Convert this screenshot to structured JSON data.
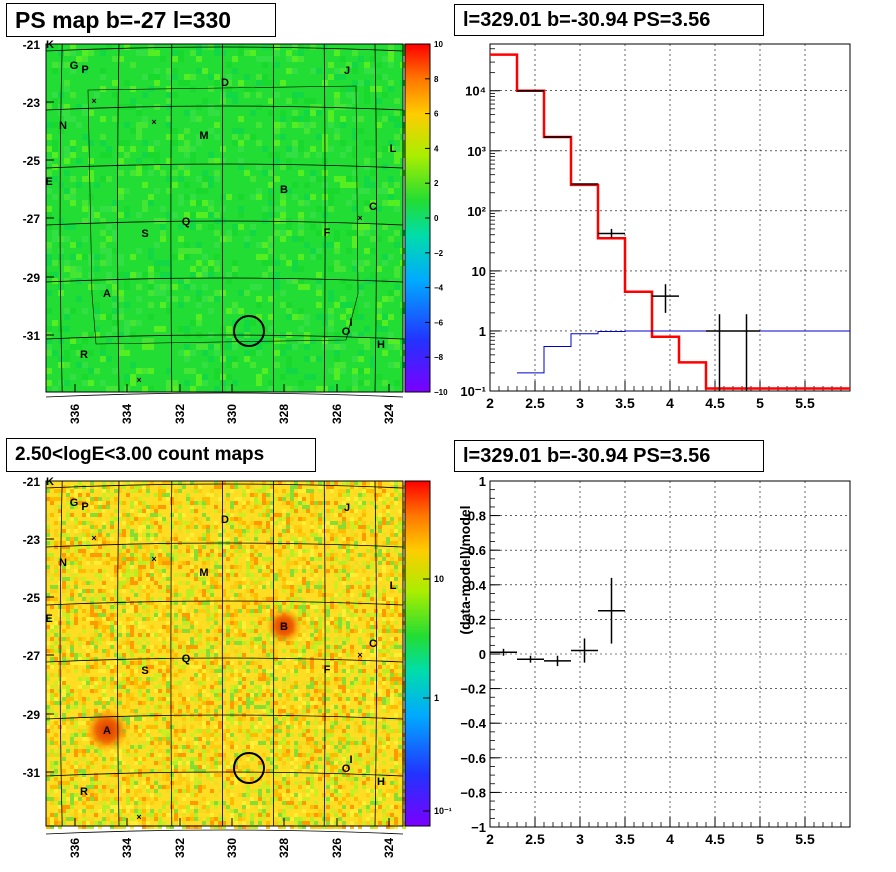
{
  "panels": {
    "ps_map": {
      "title": "PS map b=-27 l=330",
      "colorbar_ticks": [
        "10",
        "8",
        "6",
        "4",
        "2",
        "0",
        "−2",
        "−4",
        "−6",
        "−8",
        "−10"
      ]
    },
    "spectrum": {
      "title": "l=329.01 b=-30.94 PS=3.56"
    },
    "count_map": {
      "title": "2.50<logE<3.00 count maps",
      "colorbar_ticks": [
        "10",
        "1",
        "10⁻¹"
      ]
    },
    "residual": {
      "title": "l=329.01 b=-30.94 PS=3.56",
      "ylabel": "(data-model)/model"
    }
  },
  "sky_map": {
    "y_ticks": [
      "-21",
      "-23",
      "-25",
      "-27",
      "-29",
      "-31"
    ],
    "x_ticks": [
      "336",
      "334",
      "332",
      "330",
      "328",
      "326",
      "324"
    ],
    "sources": [
      "K",
      "G",
      "P",
      "J",
      "D",
      "N",
      "M",
      "L",
      "E",
      "B",
      "C",
      "Q",
      "S",
      "F",
      "A",
      "I",
      "O",
      "H",
      "R"
    ]
  },
  "chart_data": [
    {
      "type": "heatmap",
      "title": "PS map b=-27 l=330",
      "xlim": [
        337,
        323
      ],
      "ylim": [
        -33,
        -21
      ],
      "x_ticks": [
        336,
        334,
        332,
        330,
        328,
        326,
        324
      ],
      "y_ticks": [
        -21,
        -23,
        -25,
        -27,
        -29,
        -31
      ],
      "colorbar_range": [
        -10,
        10
      ],
      "colors": {
        "background": "#22dd33"
      }
    },
    {
      "type": "line",
      "title": "l=329.01 b=-30.94 PS=3.56",
      "yscale": "log",
      "xlim": [
        2,
        6
      ],
      "ylim": [
        0.1,
        60000
      ],
      "x_ticks": [
        "2",
        "2.5",
        "3",
        "3.5",
        "4",
        "4.5",
        "5",
        "5.5"
      ],
      "y_ticks": [
        "10⁻¹",
        "1",
        "10",
        "10²",
        "10³",
        "10⁴"
      ],
      "series": [
        {
          "color": "#ff0000",
          "edges": [
            2,
            2.3,
            2.6,
            2.9,
            3.2,
            3.5,
            3.8,
            4.1,
            4.4,
            6.0
          ],
          "values": [
            40000,
            10000,
            1700,
            270,
            35,
            4.5,
            0.8,
            0.3,
            0.11
          ]
        },
        {
          "color": "#0000cc",
          "edges": [
            2.3,
            2.6,
            2.9,
            3.2,
            3.5,
            3.8,
            4.1,
            4.4,
            6.0
          ],
          "values": [
            0.2,
            0.55,
            0.9,
            0.98,
            1.0,
            1.0,
            1.0,
            1.0
          ]
        },
        {
          "color": "#000000",
          "points": [
            {
              "x": 2.45,
              "y": 10000,
              "xerr": 0.15
            },
            {
              "x": 2.75,
              "y": 1700,
              "xerr": 0.15
            },
            {
              "x": 3.05,
              "y": 280,
              "xerr": 0.15
            },
            {
              "x": 3.35,
              "y": 42,
              "xerr": 0.15,
              "ylo": 36,
              "yhi": 50
            },
            {
              "x": 3.95,
              "y": 3.8,
              "xerr": 0.15,
              "ylo": 2.0,
              "yhi": 6.0
            },
            {
              "x": 4.55,
              "y": 1.0,
              "xerr": 0.15,
              "ylo": 0.1,
              "yhi": 1.9
            },
            {
              "x": 4.85,
              "y": 1.0,
              "xerr": 0.15,
              "ylo": 0.1,
              "yhi": 1.9
            }
          ]
        }
      ]
    },
    {
      "type": "heatmap",
      "title": "2.50<logE<3.00 count maps",
      "xlim": [
        337,
        323
      ],
      "ylim": [
        -33,
        -21
      ],
      "x_ticks": [
        336,
        334,
        332,
        330,
        328,
        326,
        324
      ],
      "y_ticks": [
        -21,
        -23,
        -25,
        -27,
        -29,
        -31
      ],
      "colorbar": "log",
      "colors": {
        "background": "#ffdd22"
      }
    },
    {
      "type": "scatter",
      "title": "l=329.01 b=-30.94 PS=3.56",
      "ylabel": "(data-model)/model",
      "xlim": [
        2,
        6
      ],
      "ylim": [
        -1,
        1
      ],
      "x_ticks": [
        "2",
        "2.5",
        "3",
        "3.5",
        "4",
        "4.5",
        "5",
        "5.5"
      ],
      "y_ticks": [
        "1",
        "0.8",
        "0.6",
        "0.4",
        "0.2",
        "0",
        "−0.2",
        "−0.4",
        "−0.6",
        "−0.8",
        "−1"
      ],
      "points": [
        {
          "x": 2.15,
          "y": 0.01,
          "xerr": 0.15,
          "yerr": 0.02
        },
        {
          "x": 2.45,
          "y": -0.03,
          "xerr": 0.15,
          "yerr": 0.02
        },
        {
          "x": 2.75,
          "y": -0.04,
          "xerr": 0.15,
          "yerr": 0.03
        },
        {
          "x": 3.05,
          "y": 0.02,
          "xerr": 0.15,
          "yerr": 0.07
        },
        {
          "x": 3.35,
          "y": 0.25,
          "xerr": 0.15,
          "yerr": 0.19
        }
      ]
    }
  ]
}
